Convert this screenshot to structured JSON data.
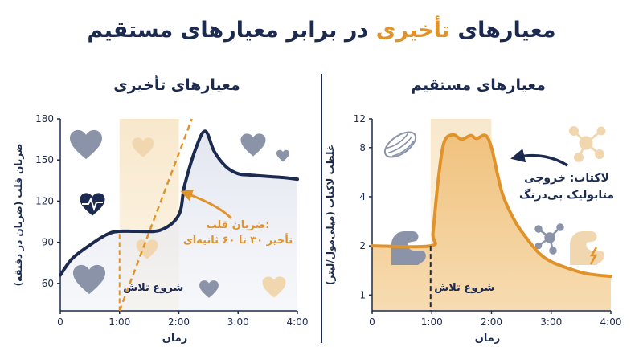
{
  "header": {
    "title_part1": "معیارهای",
    "title_accent": "تأخیری",
    "title_part2": "در برابر معیارهای مستقیم"
  },
  "colors": {
    "navy": "#1b2a4e",
    "accent": "#e0932b",
    "band": "#f6e4c6",
    "icon_gray": "#8a93a8",
    "icon_light": "#f1d7b0"
  },
  "chart_data": [
    {
      "type": "line",
      "title": "معیارهای تأخیری",
      "xlabel": "زمان",
      "ylabel": "ضربان قلب (ضربان در دقیقه)",
      "x_ticks": [
        "0",
        "1:00",
        "2:00",
        "3:00",
        "4:00"
      ],
      "y_ticks": [
        "60",
        "90",
        "120",
        "150",
        "180"
      ],
      "xlim": [
        0,
        4
      ],
      "ylim": [
        40,
        180
      ],
      "y_positions": [
        60,
        90,
        120,
        150,
        180
      ],
      "series": [
        {
          "style": "solid",
          "x": [
            0,
            0.2,
            0.5,
            0.8,
            1.0,
            1.3,
            1.7,
            2.0,
            2.1,
            2.3,
            2.45,
            2.6,
            2.8,
            3.0,
            3.2,
            3.5,
            3.8,
            4.0
          ],
          "y": [
            66,
            78,
            88,
            96,
            98,
            98,
            99,
            110,
            132,
            160,
            171,
            156,
            145,
            140,
            139,
            138,
            137,
            136
          ]
        },
        {
          "style": "dashed",
          "x": [
            1.0,
            2.22
          ],
          "y": [
            40,
            180
          ]
        }
      ],
      "shaded_region": [
        1.0,
        2.0
      ],
      "annotations": {
        "start": "شروع تلاش",
        "note_line1": "ضربان قلب:",
        "note_line2": "تأخیر ۳۰ تا ۶۰ ثانیه‌ای"
      }
    },
    {
      "type": "area",
      "title": "معیارهای مستقیم",
      "xlabel": "زمان",
      "ylabel": "غلظت لاکتات (میلی‌مول/لیتر)",
      "x_ticks": [
        "0",
        "1:00",
        "2:00",
        "3:00",
        "4:00"
      ],
      "y_ticks": [
        "1",
        "2",
        "4",
        "8",
        "12"
      ],
      "y_positions": [
        1,
        2,
        4,
        8,
        12
      ],
      "scale": "log",
      "xlim": [
        0,
        4
      ],
      "ylim": [
        0.8,
        12
      ],
      "series": [
        {
          "x": [
            0,
            0.98,
            1.02,
            1.1,
            1.2,
            1.35,
            1.5,
            1.65,
            1.75,
            1.9,
            2.0,
            2.1,
            2.2,
            2.4,
            2.6,
            2.8,
            3.0,
            3.3,
            3.6,
            4.0
          ],
          "y": [
            2.0,
            2.0,
            2.4,
            4.8,
            8.5,
            9.6,
            9.0,
            9.5,
            9.1,
            9.5,
            8.0,
            5.5,
            4.0,
            2.8,
            2.2,
            1.8,
            1.6,
            1.45,
            1.35,
            1.3
          ]
        }
      ],
      "shaded_region": [
        0.98,
        2.0
      ],
      "annotations": {
        "start": "شروع تلاش",
        "note_line1": "لاکتات: خروجی",
        "note_line2": "متابولیک بی‌درنگ"
      }
    }
  ]
}
